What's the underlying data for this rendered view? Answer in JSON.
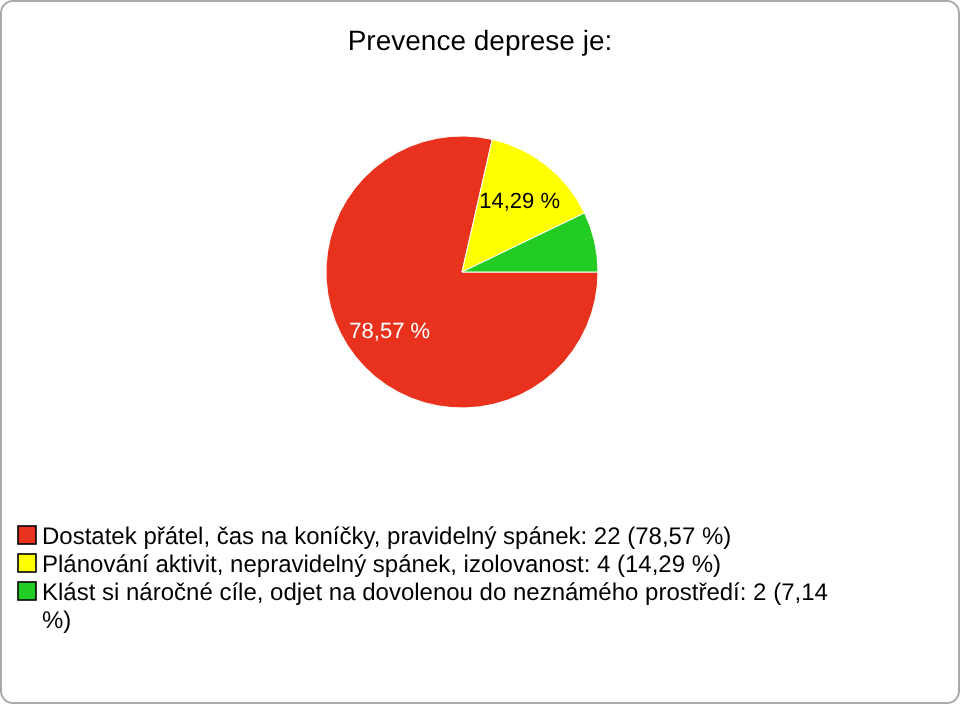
{
  "chart_data": {
    "type": "pie",
    "title": "Prevence deprese je:",
    "categories": [
      "Dostatek přátel, čas na koníčky, pravidelný spánek: 22 (78,57 %)",
      "Plánování aktivit, nepravidelný spánek, izolovanost: 4 (14,29 %)",
      "Klást si náročné cíle, odjet na dovolenou do neznámého prostředí: 2 (7,14 %)"
    ],
    "values": [
      78.57,
      14.29,
      7.14
    ],
    "colors": [
      "#e8321e",
      "#ffff00",
      "#22cc22"
    ],
    "value_labels": [
      "78,57 %",
      "14,29 %",
      null
    ],
    "legend": "bottom"
  }
}
